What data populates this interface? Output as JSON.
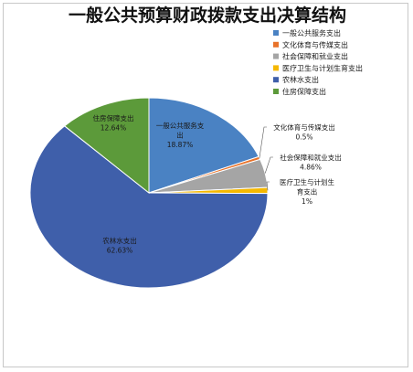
{
  "chart_data": {
    "type": "pie",
    "title": "一般公共预算财政拨款支出决算结构",
    "legend_position": "right",
    "slices": [
      {
        "name": "一般公共服务支出",
        "value": 18.87,
        "label": "18.87%",
        "color": "#4a82c3",
        "label_lines": [
          "一般公共服务支",
          "出"
        ]
      },
      {
        "name": "文化体育与传媒支出",
        "value": 0.5,
        "label": "0.5%",
        "color": "#e8732b",
        "label_lines": [
          "文化体育与传媒支出"
        ]
      },
      {
        "name": "社会保障和就业支出",
        "value": 4.86,
        "label": "4.86%",
        "color": "#a5a5a5",
        "label_lines": [
          "社会保障和就业支出"
        ]
      },
      {
        "name": "医疗卫生与计划生育支出",
        "value": 1,
        "label": "1%",
        "color": "#f5b800",
        "label_lines": [
          "医疗卫生与计划生",
          "育支出"
        ]
      },
      {
        "name": "农林水支出",
        "value": 62.63,
        "label": "62.63%",
        "color": "#3f5faa",
        "label_lines": [
          "农林水支出"
        ]
      },
      {
        "name": "住房保障支出",
        "value": 12.64,
        "label": "12.64%",
        "color": "#5c9a3a",
        "label_lines": [
          "住房保障支出"
        ]
      }
    ]
  }
}
